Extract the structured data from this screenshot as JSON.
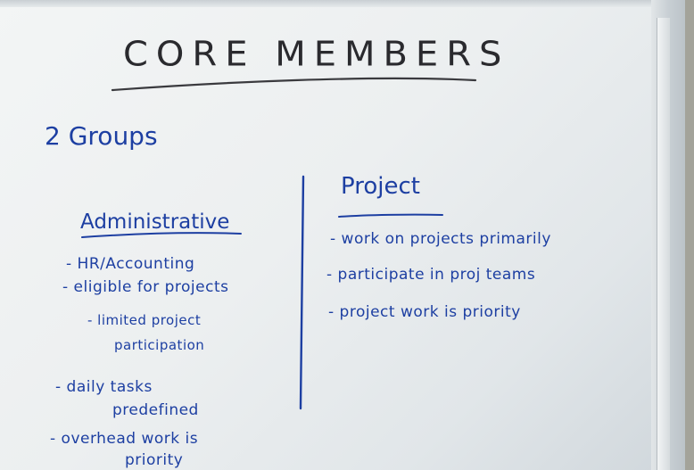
{
  "title": "CORE MEMBERS",
  "subtitle": "2 Groups",
  "groups": {
    "administrative": {
      "heading": "Administrative",
      "items": [
        "- HR/Accounting",
        "- eligible for projects",
        "- limited project",
        "participation",
        "- daily tasks",
        "predefined",
        "- overhead work is",
        "priority"
      ]
    },
    "project": {
      "heading": "Project",
      "items": [
        "- work on projects primarily",
        "- participate in proj teams",
        "- project work is priority"
      ]
    }
  },
  "colors": {
    "marker_blue": "#1d3fa2",
    "marker_black": "#2a2a2e",
    "board": "#eceff0"
  }
}
